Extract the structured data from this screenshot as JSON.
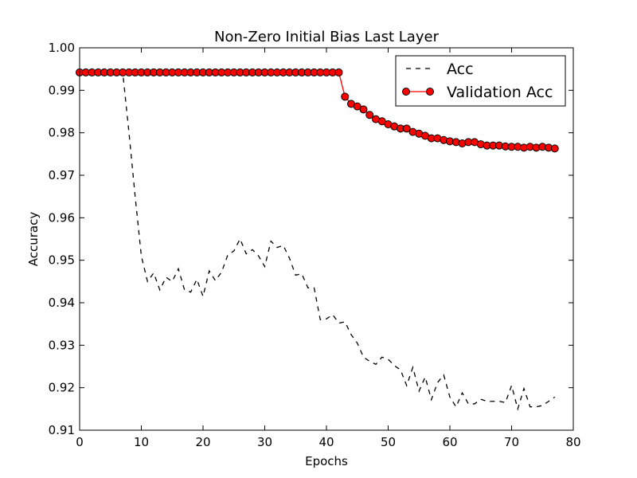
{
  "chart_data": {
    "type": "line",
    "title": "Non-Zero Initial Bias Last Layer",
    "xlabel": "Epochs",
    "ylabel": "Accuracy",
    "xlim": [
      0,
      80
    ],
    "ylim": [
      0.91,
      1.0
    ],
    "xticks": [
      0,
      10,
      20,
      30,
      40,
      50,
      60,
      70,
      80
    ],
    "yticks": [
      0.91,
      0.92,
      0.93,
      0.94,
      0.95,
      0.96,
      0.97,
      0.98,
      0.99,
      1.0
    ],
    "xtick_labels": [
      "0",
      "10",
      "20",
      "30",
      "40",
      "50",
      "60",
      "70",
      "80"
    ],
    "ytick_labels": [
      "0.91",
      "0.92",
      "0.93",
      "0.94",
      "0.95",
      "0.96",
      "0.97",
      "0.98",
      "0.99",
      "1.00"
    ],
    "grid": false,
    "legend_position": "top-right",
    "series": [
      {
        "name": "Acc",
        "style": "dashed",
        "color": "#000000",
        "x": [
          0,
          1,
          2,
          3,
          4,
          5,
          6,
          7,
          8,
          9,
          10,
          11,
          12,
          13,
          14,
          15,
          16,
          17,
          18,
          19,
          20,
          21,
          22,
          23,
          24,
          25,
          26,
          27,
          28,
          29,
          30,
          31,
          32,
          33,
          34,
          35,
          36,
          37,
          38,
          39,
          40,
          41,
          42,
          43,
          44,
          45,
          46,
          47,
          48,
          49,
          50,
          51,
          52,
          53,
          54,
          55,
          56,
          57,
          58,
          59,
          60,
          61,
          62,
          63,
          64,
          65,
          66,
          67,
          68,
          69,
          70,
          71,
          72,
          73,
          74,
          75,
          76,
          77
        ],
        "values": [
          0.994,
          0.994,
          0.994,
          0.994,
          0.994,
          0.994,
          0.994,
          0.994,
          0.98,
          0.965,
          0.951,
          0.945,
          0.947,
          0.943,
          0.946,
          0.945,
          0.948,
          0.943,
          0.9425,
          0.9455,
          0.9415,
          0.9475,
          0.9452,
          0.9472,
          0.9512,
          0.9522,
          0.955,
          0.9515,
          0.9525,
          0.951,
          0.9485,
          0.9545,
          0.953,
          0.9535,
          0.9505,
          0.9465,
          0.9468,
          0.9435,
          0.9435,
          0.936,
          0.9362,
          0.9372,
          0.9352,
          0.9355,
          0.9325,
          0.9305,
          0.9272,
          0.9262,
          0.9255,
          0.9272,
          0.9267,
          0.9252,
          0.9242,
          0.9205,
          0.9248,
          0.9192,
          0.9225,
          0.9172,
          0.9212,
          0.923,
          0.9178,
          0.9155,
          0.9188,
          0.9162,
          0.9162,
          0.9173,
          0.9168,
          0.9168,
          0.9168,
          0.9165,
          0.9205,
          0.915,
          0.9198,
          0.9155,
          0.9155,
          0.9158,
          0.9168,
          0.9178
        ]
      },
      {
        "name": "Validation Acc",
        "style": "solid-marker",
        "color": "#ff0000",
        "x": [
          0,
          1,
          2,
          3,
          4,
          5,
          6,
          7,
          8,
          9,
          10,
          11,
          12,
          13,
          14,
          15,
          16,
          17,
          18,
          19,
          20,
          21,
          22,
          23,
          24,
          25,
          26,
          27,
          28,
          29,
          30,
          31,
          32,
          33,
          34,
          35,
          36,
          37,
          38,
          39,
          40,
          41,
          42,
          43,
          44,
          45,
          46,
          47,
          48,
          49,
          50,
          51,
          52,
          53,
          54,
          55,
          56,
          57,
          58,
          59,
          60,
          61,
          62,
          63,
          64,
          65,
          66,
          67,
          68,
          69,
          70,
          71,
          72,
          73,
          74,
          75,
          76,
          77
        ],
        "values": [
          0.9942,
          0.9942,
          0.9942,
          0.9942,
          0.9942,
          0.9942,
          0.9942,
          0.9942,
          0.9942,
          0.9942,
          0.9942,
          0.9942,
          0.9942,
          0.9942,
          0.9942,
          0.9942,
          0.9942,
          0.9942,
          0.9942,
          0.9942,
          0.9942,
          0.9942,
          0.9942,
          0.9942,
          0.9942,
          0.9942,
          0.9942,
          0.9942,
          0.9942,
          0.9942,
          0.9942,
          0.9942,
          0.9942,
          0.9942,
          0.9942,
          0.9942,
          0.9942,
          0.9942,
          0.9942,
          0.9942,
          0.9942,
          0.9942,
          0.9942,
          0.9885,
          0.9868,
          0.9862,
          0.9855,
          0.9842,
          0.9832,
          0.9827,
          0.982,
          0.9815,
          0.981,
          0.981,
          0.9802,
          0.9798,
          0.9793,
          0.9787,
          0.9787,
          0.9783,
          0.978,
          0.9778,
          0.9775,
          0.9778,
          0.9778,
          0.9773,
          0.977,
          0.977,
          0.977,
          0.9768,
          0.9767,
          0.9767,
          0.9765,
          0.9767,
          0.9765,
          0.9767,
          0.9765,
          0.9763
        ]
      }
    ]
  }
}
